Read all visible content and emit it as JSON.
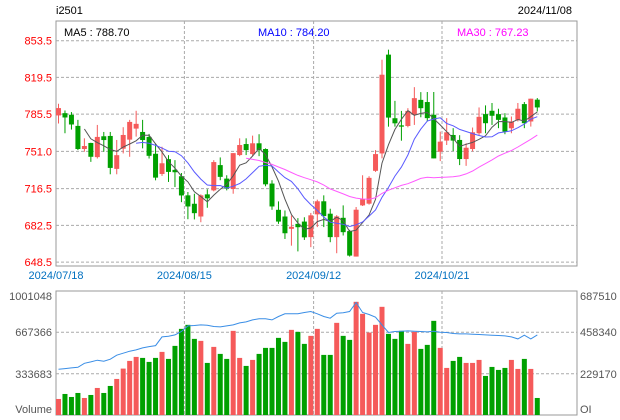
{
  "header": {
    "symbol": "i2501",
    "date": "2024/11/08"
  },
  "legend": {
    "ma5": "MA5 : 788.70",
    "ma10": "MA10 : 784.20",
    "ma30": "MA30 : 767.23"
  },
  "colors": {
    "up": "#f55a5a",
    "down": "#00a000",
    "ma5": "#555555",
    "ma10": "#5a5aff",
    "ma30": "#ff5aff",
    "oi": "#3a8ee6",
    "axis_price": "#ff0000",
    "axis_date": "#0070c0"
  },
  "chart_data": [
    {
      "type": "candlestick",
      "title": "",
      "yticks": [
        "853.5",
        "819.5",
        "785.5",
        "751.0",
        "716.5",
        "682.5",
        "648.5"
      ],
      "ylim": [
        648.5,
        853.5
      ],
      "xticks": [
        "2024/07/18",
        "2024/08/15",
        "2024/09/12",
        "2024/10/21"
      ],
      "grid": true,
      "ohlc": [
        [
          784.3,
          795.1,
          776.8,
          791.1
        ],
        [
          786.4,
          788.9,
          767.8,
          782.4
        ],
        [
          784.9,
          787.4,
          771.2,
          775.9
        ],
        [
          774.6,
          780.2,
          752.2,
          753.2
        ],
        [
          753.2,
          763.1,
          750.7,
          756.0
        ],
        [
          758.8,
          759.0,
          741.3,
          746.0
        ],
        [
          745.7,
          775.5,
          744.4,
          764.4
        ],
        [
          765.0,
          769.0,
          750.7,
          761.5
        ],
        [
          765.3,
          769.0,
          729.8,
          735.7
        ],
        [
          734.8,
          761.6,
          729.8,
          747.5
        ],
        [
          753.5,
          773.4,
          749.1,
          766.2
        ],
        [
          761.9,
          780.2,
          746.0,
          778.3
        ],
        [
          772.1,
          788.6,
          764.7,
          776.5
        ],
        [
          769.0,
          780.2,
          753.8,
          761.5
        ],
        [
          764.4,
          767.2,
          744.4,
          746.9
        ],
        [
          748.8,
          758.4,
          724.2,
          726.7
        ],
        [
          730.1,
          755.3,
          728.3,
          740.0
        ],
        [
          743.8,
          747.5,
          722.7,
          732.0
        ],
        [
          733.9,
          742.9,
          718.0,
          731.7
        ],
        [
          728.0,
          731.0,
          704.0,
          710.2
        ],
        [
          710.3,
          713.4,
          688.2,
          700.0
        ],
        [
          702.5,
          711.8,
          688.0,
          693.8
        ],
        [
          690.7,
          711.2,
          685.4,
          710.3
        ],
        [
          711.2,
          715.9,
          698.8,
          707.5
        ],
        [
          714.9,
          742.9,
          714.0,
          741.1
        ],
        [
          738.3,
          745.4,
          724.3,
          727.4
        ],
        [
          725.8,
          728.9,
          714.9,
          716.5
        ],
        [
          716.2,
          749.4,
          711.8,
          749.4
        ],
        [
          747.6,
          763.1,
          746.6,
          756.9
        ],
        [
          757.8,
          763.1,
          747.6,
          752.2
        ],
        [
          748.5,
          765.6,
          746.6,
          758.5
        ],
        [
          758.5,
          766.9,
          746.6,
          752.2
        ],
        [
          753.2,
          753.8,
          718.7,
          720.5
        ],
        [
          721.2,
          724.3,
          696.9,
          700.0
        ],
        [
          696.9,
          704.7,
          683.9,
          686.0
        ],
        [
          690.7,
          696.3,
          669.9,
          675.2
        ],
        [
          679.3,
          691.6,
          663.7,
          681.2
        ],
        [
          683.9,
          689.2,
          658.4,
          680.8
        ],
        [
          686.0,
          690.0,
          669.0,
          671.4
        ],
        [
          671.6,
          694.0,
          662.3,
          691.8
        ],
        [
          692.7,
          706.3,
          680.9,
          704.8
        ],
        [
          704.8,
          710.3,
          680.9,
          691.1
        ],
        [
          693.3,
          697.9,
          666.9,
          671.6
        ],
        [
          671.6,
          692.0,
          656.7,
          690.8
        ],
        [
          689.5,
          701.0,
          673.1,
          676.2
        ],
        [
          677.2,
          678.4,
          653.6,
          654.5
        ],
        [
          653.6,
          699.5,
          653.6,
          697.0
        ],
        [
          701.0,
          728.9,
          700.4,
          706.7
        ],
        [
          702.6,
          728.0,
          701.7,
          726.5
        ],
        [
          733.0,
          752.2,
          732.0,
          748.5
        ],
        [
          749.1,
          835.9,
          744.5,
          822.0
        ],
        [
          840.6,
          845.2,
          773.9,
          782.3
        ],
        [
          781.7,
          797.8,
          773.9,
          777.0
        ],
        [
          775.1,
          788.5,
          760.9,
          773.9
        ],
        [
          774.5,
          791.0,
          773.3,
          788.5
        ],
        [
          784.9,
          810.5,
          775.5,
          800.3
        ],
        [
          798.7,
          805.9,
          782.6,
          791.0
        ],
        [
          796.7,
          806.0,
          778.7,
          781.8
        ],
        [
          784.9,
          806.0,
          744.5,
          744.5
        ],
        [
          750.7,
          769.3,
          742.0,
          760.0
        ],
        [
          761.0,
          781.8,
          756.9,
          768.7
        ],
        [
          766.2,
          772.5,
          751.3,
          761.0
        ],
        [
          761.6,
          766.0,
          738.3,
          743.9
        ],
        [
          743.9,
          758.5,
          737.6,
          754.4
        ],
        [
          753.2,
          773.1,
          751.0,
          768.7
        ],
        [
          767.8,
          791.7,
          766.2,
          783.0
        ],
        [
          785.5,
          793.6,
          767.8,
          777.1
        ],
        [
          788.6,
          795.8,
          775.5,
          784.0
        ],
        [
          785.5,
          790.5,
          772.5,
          780.2
        ],
        [
          782.4,
          786.4,
          766.9,
          769.3
        ],
        [
          772.4,
          783.3,
          767.8,
          778.7
        ],
        [
          780.2,
          795.8,
          778.7,
          790.5
        ],
        [
          794.8,
          796.7,
          772.5,
          777.1
        ],
        [
          778.7,
          799.8,
          774.0,
          799.8
        ],
        [
          798.9,
          800.4,
          788.0,
          791.7
        ]
      ],
      "moving_averages": [
        "MA5",
        "MA10",
        "MA30"
      ]
    },
    {
      "type": "bar",
      "title": "",
      "ylabel_left": "Volume",
      "ylabel_right": "OI",
      "yticks_left": [
        "1001048",
        "667366",
        "333683"
      ],
      "yticks_right": [
        "687510",
        "458340",
        "229170"
      ],
      "ylim_left": [
        0,
        1001048
      ],
      "ylim_right": [
        0,
        687510
      ],
      "volume": [
        129170,
        169530,
        145310,
        177610,
        137240,
        161460,
        217970,
        177610,
        234120,
        290630,
        374050,
        435940,
        468230,
        460160,
        427870,
        460160,
        508600,
        452090,
        557040,
        694280,
        726570,
        613550,
        597400,
        419800,
        548960,
        492450,
        452090,
        678130,
        460160,
        395580,
        444020,
        492450,
        540890,
        540890,
        621620,
        589330,
        686210,
        670060,
        573180,
        637770,
        694280,
        484380,
        484380,
        742720,
        637770,
        605480,
        912250,
        815370,
        664680,
        726570,
        871880,
        653910,
        613550,
        678130,
        573180,
        670060,
        532820,
        565110,
        758860,
        540890,
        379430,
        435940,
        468230,
        419800,
        419800,
        444020,
        314850,
        387500,
        363290,
        379430,
        444020,
        371360,
        452090,
        371360,
        137240
      ],
      "open_interest": [
        253190,
        256890,
        260580,
        264280,
        286460,
        293850,
        303090,
        297550,
        308630,
        330810,
        341900,
        352990,
        360380,
        371470,
        378860,
        384400,
        432460,
        436150,
        443540,
        462020,
        493440,
        495290,
        498980,
        497130,
        489740,
        487900,
        493440,
        498980,
        510070,
        515620,
        526700,
        532250,
        532250,
        526700,
        545180,
        559980,
        559980,
        559980,
        567390,
        572900,
        559980,
        545180,
        535950,
        563680,
        565530,
        572900,
        622810,
        567390,
        556270,
        541490,
        498980,
        456480,
        462020,
        463870,
        465720,
        463870,
        462020,
        460170,
        463870,
        458330,
        456480,
        450930,
        449090,
        449090,
        447240,
        445390,
        443540,
        441690,
        439840,
        437990,
        432460,
        421370,
        441690,
        421370,
        443540
      ]
    }
  ]
}
